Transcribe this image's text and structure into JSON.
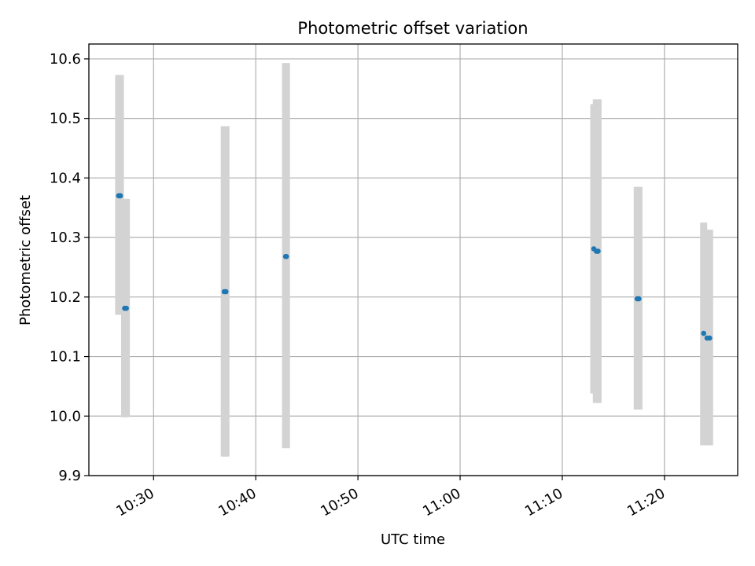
{
  "chart_data": {
    "type": "scatter",
    "title": "Photometric offset variation",
    "xlabel": "UTC time",
    "ylabel": "Photometric offset",
    "x_unit": "UTC time (hh:mm)",
    "xlim": [
      "10:23:40",
      "11:27:10"
    ],
    "ylim": [
      9.9,
      10.625
    ],
    "xticks": [
      "10:30",
      "10:40",
      "10:50",
      "11:00",
      "11:10",
      "11:20"
    ],
    "yticks": [
      "9.9",
      "10.0",
      "10.1",
      "10.2",
      "10.3",
      "10.4",
      "10.5",
      "10.6"
    ],
    "grid": true,
    "marker_color": "#1f77b4",
    "errorbar_color": "#d3d3d3",
    "points": [
      {
        "x": "10:26:35",
        "y": 10.37,
        "ylow": 10.17,
        "yhigh": 10.573
      },
      {
        "x": "10:26:45",
        "y": 10.37,
        "ylow": 10.17,
        "yhigh": 10.573
      },
      {
        "x": "10:27:10",
        "y": 10.181,
        "ylow": 9.998,
        "yhigh": 10.365
      },
      {
        "x": "10:27:20",
        "y": 10.181,
        "ylow": 9.998,
        "yhigh": 10.365
      },
      {
        "x": "10:36:55",
        "y": 10.209,
        "ylow": 9.932,
        "yhigh": 10.487
      },
      {
        "x": "10:37:05",
        "y": 10.209,
        "ylow": 9.932,
        "yhigh": 10.487
      },
      {
        "x": "10:42:55",
        "y": 10.268,
        "ylow": 9.946,
        "yhigh": 10.593
      },
      {
        "x": "10:43:00",
        "y": 10.268,
        "ylow": 9.946,
        "yhigh": 10.593
      },
      {
        "x": "11:13:05",
        "y": 10.281,
        "ylow": 10.038,
        "yhigh": 10.524
      },
      {
        "x": "11:13:20",
        "y": 10.277,
        "ylow": 10.022,
        "yhigh": 10.532
      },
      {
        "x": "11:13:30",
        "y": 10.277,
        "ylow": 10.022,
        "yhigh": 10.532
      },
      {
        "x": "11:17:20",
        "y": 10.197,
        "ylow": 10.011,
        "yhigh": 10.385
      },
      {
        "x": "11:17:30",
        "y": 10.197,
        "ylow": 10.011,
        "yhigh": 10.385
      },
      {
        "x": "11:23:50",
        "y": 10.139,
        "ylow": 9.951,
        "yhigh": 10.325
      },
      {
        "x": "11:24:10",
        "y": 10.131,
        "ylow": 9.951,
        "yhigh": 10.313
      },
      {
        "x": "11:24:25",
        "y": 10.131,
        "ylow": 9.951,
        "yhigh": 10.313
      }
    ]
  }
}
